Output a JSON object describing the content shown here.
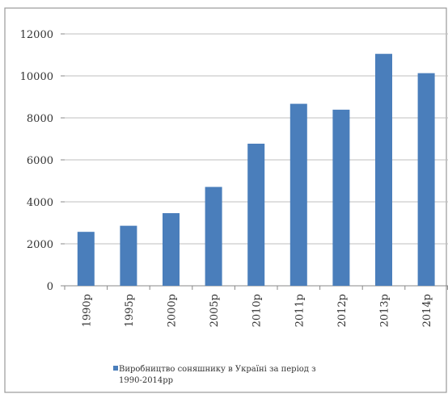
{
  "chart_data": {
    "type": "bar",
    "title": "",
    "xlabel": "",
    "ylabel": "",
    "categories": [
      "1990р",
      "1995р",
      "2000р",
      "2005р",
      "2010р",
      "2011р",
      "2012р",
      "2013р",
      "2014р"
    ],
    "series": [
      {
        "name": "Виробництво соняшнику в Україні за період з 1990-2014рр",
        "values": [
          2570,
          2860,
          3460,
          4710,
          6770,
          8670,
          8390,
          11050,
          10130
        ],
        "color": "#4a7ebb"
      }
    ],
    "ylim": [
      0,
      12000
    ],
    "yticks": [
      0,
      2000,
      4000,
      6000,
      8000,
      10000,
      12000
    ],
    "grid": true,
    "legend_position": "bottom-left"
  },
  "legend": {
    "line1": "Виробництво соняшнику в Україні за період з",
    "line2": "1990-2014рр"
  }
}
